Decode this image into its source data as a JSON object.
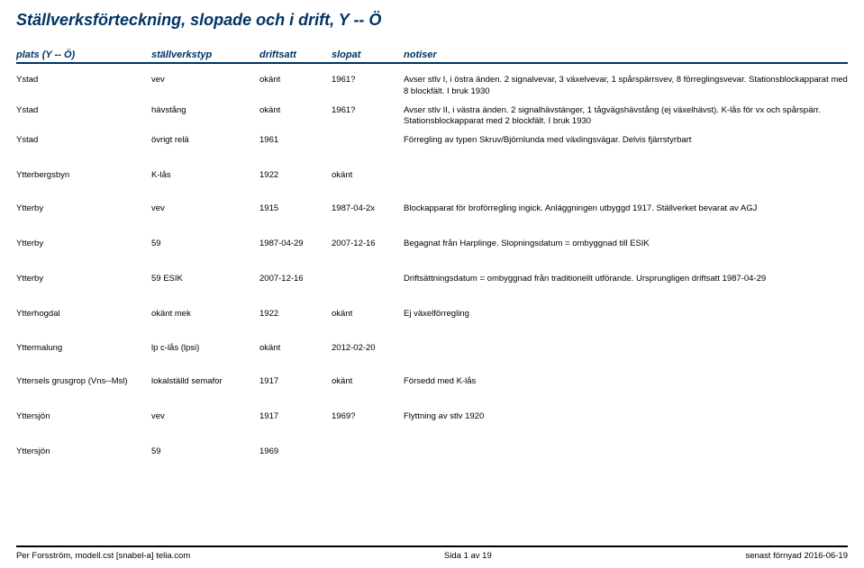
{
  "title": "Ställverksförteckning, slopade och i drift, Y -- Ö",
  "headers": {
    "plats": "plats (Y -- Ö)",
    "typ": "ställverkstyp",
    "drift": "driftsatt",
    "slopat": "slopat",
    "notiser": "notiser"
  },
  "groups": [
    {
      "rows": [
        {
          "plats": "Ystad",
          "typ": "vev",
          "drift": "okänt",
          "slopat": "1961?",
          "notiser": "Avser stlv I, i östra änden. 2 signalvevar, 3 växelvevar, 1 spårspärrsvev, 8 förreglingsvevar. Stationsblockapparat med 8  blockfält. I bruk 1930"
        },
        {
          "plats": "Ystad",
          "typ": "hävstång",
          "drift": "okänt",
          "slopat": "1961?",
          "notiser": "Avser stlv II, i västra änden. 2 signalhävstänger, 1 tågvägshävstång (ej växelhävst). K-lås för vx och spårspärr. Stationsblockapparat med 2  blockfält. I bruk 1930"
        },
        {
          "plats": "Ystad",
          "typ": "övrigt relä",
          "drift": "1961",
          "slopat": "",
          "notiser": "Förregling av typen Skruv/Björnlunda med växlingsvägar. Delvis fjärrstyrbart"
        }
      ]
    },
    {
      "rows": [
        {
          "plats": "Ytterbergsbyn",
          "typ": "K-lås",
          "drift": "1922",
          "slopat": "okänt",
          "notiser": ""
        }
      ]
    },
    {
      "rows": [
        {
          "plats": "Ytterby",
          "typ": "vev",
          "drift": "1915",
          "slopat": "1987-04-2x",
          "notiser": "Blockapparat för broförregling ingick. Anläggningen utbyggd 1917. Ställverket bevarat av AGJ"
        }
      ]
    },
    {
      "rows": [
        {
          "plats": "Ytterby",
          "typ": "59",
          "drift": "1987-04-29",
          "slopat": "2007-12-16",
          "notiser": "Begagnat från Harplinge. Slopningsdatum = ombyggnad till ESIK"
        }
      ]
    },
    {
      "rows": [
        {
          "plats": "Ytterby",
          "typ": "59 ESIK",
          "drift": "2007-12-16",
          "slopat": "",
          "notiser": "Driftsättningsdatum = ombyggnad från traditionellt utförande. Ursprungligen driftsatt 1987-04-29"
        }
      ]
    },
    {
      "rows": [
        {
          "plats": "Ytterhogdal",
          "typ": "okänt mek",
          "drift": "1922",
          "slopat": "okänt",
          "notiser": "Ej växelförregling"
        }
      ]
    },
    {
      "rows": [
        {
          "plats": "Yttermalung",
          "typ": "lp c-lås (lpsi)",
          "drift": "okänt",
          "slopat": "2012-02-20",
          "notiser": ""
        }
      ]
    },
    {
      "rows": [
        {
          "plats": "Yttersels grusgrop (Vns--Msl)",
          "typ": "lokalställd semafor",
          "drift": "1917",
          "slopat": "okänt",
          "notiser": "Försedd med K-lås"
        }
      ]
    },
    {
      "rows": [
        {
          "plats": "Yttersjön",
          "typ": "vev",
          "drift": "1917",
          "slopat": "1969?",
          "notiser": "Flyttning av stlv 1920"
        }
      ]
    },
    {
      "rows": [
        {
          "plats": "Yttersjön",
          "typ": "59",
          "drift": "1969",
          "slopat": "",
          "notiser": ""
        }
      ]
    }
  ],
  "footer": {
    "left": "Per Forsström, modell.cst [snabel-a] telia.com",
    "center": "Sida 1 av 19",
    "right": "senast förnyad 2016-06-19"
  }
}
